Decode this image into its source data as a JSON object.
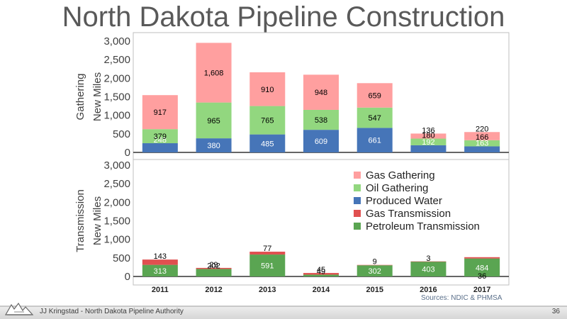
{
  "slide": {
    "title": "North Dakota Pipeline Construction",
    "sources": "Sources: NDIC & PHMSA",
    "footer": "JJ Kringstad - North Dakota Pipeline Authority",
    "page_number": "36"
  },
  "colors": {
    "gas_gathering": "#ff9f9f",
    "oil_gathering": "#92d77f",
    "produced_water": "#4675b8",
    "gas_transmission": "#e05050",
    "petroleum_transmission": "#5aa552"
  },
  "chart_data": [
    {
      "type": "bar",
      "stacked": true,
      "categories": [
        "2011",
        "2012",
        "2013",
        "2014",
        "2015",
        "2016",
        "2017"
      ],
      "ylabel": [
        "Gathering",
        "New Miles"
      ],
      "ylim": [
        0,
        3000
      ],
      "yticks": [
        "0",
        "500",
        "1,000",
        "1,500",
        "2,000",
        "2,500",
        "3,000"
      ],
      "series": [
        {
          "name": "Produced Water",
          "color_key": "produced_water",
          "values": [
            248,
            380,
            485,
            609,
            661,
            192,
            163
          ],
          "labels": [
            "248",
            "380",
            "485",
            "609",
            "661",
            "192",
            "163"
          ]
        },
        {
          "name": "Oil Gathering",
          "color_key": "oil_gathering",
          "values": [
            379,
            965,
            765,
            538,
            547,
            180,
            166
          ],
          "labels": [
            "379",
            "965",
            "765",
            "538",
            "547",
            "180",
            "166"
          ]
        },
        {
          "name": "Gas Gathering",
          "color_key": "gas_gathering",
          "values": [
            917,
            1608,
            910,
            948,
            659,
            136,
            220
          ],
          "labels": [
            "917",
            "1,608",
            "910",
            "948",
            "659",
            "136",
            "220"
          ]
        }
      ]
    },
    {
      "type": "bar",
      "stacked": true,
      "categories": [
        "2011",
        "2012",
        "2013",
        "2014",
        "2015",
        "2016",
        "2017"
      ],
      "ylabel": [
        "Transmission",
        "New Miles"
      ],
      "ylim": [
        0,
        3000
      ],
      "yticks": [
        "0",
        "500",
        "1,000",
        "1,500",
        "2,000",
        "2,500",
        "3,000"
      ],
      "series": [
        {
          "name": "Petroleum Transmission",
          "color_key": "petroleum_transmission",
          "values": [
            313,
            202,
            591,
            49,
            302,
            403,
            484
          ],
          "labels": [
            "313",
            "202",
            "591",
            "49",
            "302",
            "403",
            "484"
          ]
        },
        {
          "name": "Gas Transmission",
          "color_key": "gas_transmission",
          "values": [
            143,
            29,
            77,
            45,
            9,
            3,
            36
          ],
          "labels": [
            "143",
            "29",
            "77",
            "45",
            "9",
            "3",
            "36"
          ]
        }
      ],
      "legend": {
        "position": "upper-right",
        "entries": [
          {
            "name": "Gas Gathering",
            "color_key": "gas_gathering"
          },
          {
            "name": "Oil Gathering",
            "color_key": "oil_gathering"
          },
          {
            "name": "Produced Water",
            "color_key": "produced_water"
          },
          {
            "name": "Gas Transmission",
            "color_key": "gas_transmission"
          },
          {
            "name": "Petroleum Transmission",
            "color_key": "petroleum_transmission"
          }
        ]
      }
    }
  ]
}
